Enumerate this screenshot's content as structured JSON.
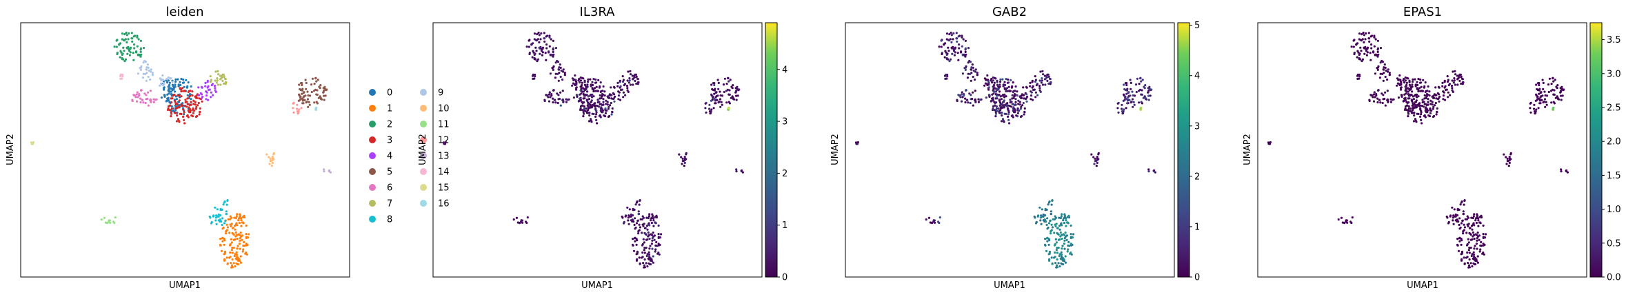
{
  "chart_data": [
    {
      "type": "scatter",
      "title": "leiden",
      "xlabel": "UMAP1",
      "ylabel": "UMAP2",
      "legend_position": "right",
      "series": [
        {
          "name": "0",
          "color": "#1f77b4",
          "clusters": [
            {
              "x": 0.485,
              "y": 0.712,
              "rx": 0.04,
              "ry": 0.075
            },
            {
              "x": 0.45,
              "y": 0.73,
              "rx": 0.025,
              "ry": 0.05
            }
          ]
        },
        {
          "name": "1",
          "color": "#ff7f0e",
          "clusters": [
            {
              "x": 0.65,
              "y": 0.14,
              "rx": 0.045,
              "ry": 0.105
            },
            {
              "x": 0.67,
              "y": 0.24,
              "rx": 0.015,
              "ry": 0.03
            }
          ]
        },
        {
          "name": "2",
          "color": "#279e68",
          "clusters": [
            {
              "x": 0.33,
              "y": 0.905,
              "rx": 0.045,
              "ry": 0.06
            }
          ]
        },
        {
          "name": "3",
          "color": "#d62728",
          "clusters": [
            {
              "x": 0.5,
              "y": 0.675,
              "rx": 0.055,
              "ry": 0.075
            }
          ]
        },
        {
          "name": "4",
          "color": "#aa40fc",
          "clusters": [
            {
              "x": 0.565,
              "y": 0.735,
              "rx": 0.03,
              "ry": 0.04
            }
          ]
        },
        {
          "name": "5",
          "color": "#8c564b",
          "clusters": [
            {
              "x": 0.885,
              "y": 0.725,
              "rx": 0.048,
              "ry": 0.06
            }
          ]
        },
        {
          "name": "6",
          "color": "#e377c2",
          "clusters": [
            {
              "x": 0.375,
              "y": 0.705,
              "rx": 0.04,
              "ry": 0.035
            }
          ]
        },
        {
          "name": "7",
          "color": "#b5bd61",
          "clusters": [
            {
              "x": 0.6,
              "y": 0.775,
              "rx": 0.03,
              "ry": 0.035
            }
          ]
        },
        {
          "name": "8",
          "color": "#17becf",
          "clusters": [
            {
              "x": 0.6,
              "y": 0.24,
              "rx": 0.03,
              "ry": 0.04
            },
            {
              "x": 0.62,
              "y": 0.295,
              "rx": 0.01,
              "ry": 0.02
            }
          ]
        },
        {
          "name": "9",
          "color": "#aec7e8",
          "clusters": [
            {
              "x": 0.38,
              "y": 0.81,
              "rx": 0.025,
              "ry": 0.04
            },
            {
              "x": 0.44,
              "y": 0.77,
              "rx": 0.025,
              "ry": 0.025
            }
          ]
        },
        {
          "name": "10",
          "color": "#ffbb78",
          "clusters": [
            {
              "x": 0.76,
              "y": 0.465,
              "rx": 0.015,
              "ry": 0.035
            }
          ]
        },
        {
          "name": "11",
          "color": "#98df8a",
          "clusters": [
            {
              "x": 0.27,
              "y": 0.225,
              "rx": 0.032,
              "ry": 0.015
            }
          ]
        },
        {
          "name": "12",
          "color": "#ff9896",
          "clusters": [
            {
              "x": 0.84,
              "y": 0.665,
              "rx": 0.018,
              "ry": 0.025
            }
          ]
        },
        {
          "name": "13",
          "color": "#c5b0d5",
          "clusters": [
            {
              "x": 0.93,
              "y": 0.415,
              "rx": 0.015,
              "ry": 0.012
            }
          ]
        },
        {
          "name": "14",
          "color": "#f7b6d2",
          "clusters": [
            {
              "x": 0.305,
              "y": 0.79,
              "rx": 0.008,
              "ry": 0.012
            }
          ]
        },
        {
          "name": "15",
          "color": "#dbdb8d",
          "clusters": [
            {
              "x": 0.035,
              "y": 0.53,
              "rx": 0.004,
              "ry": 0.008
            }
          ]
        },
        {
          "name": "16",
          "color": "#9edae5",
          "clusters": [
            {
              "x": 0.9,
              "y": 0.66,
              "rx": 0.004,
              "ry": 0.006
            }
          ]
        }
      ]
    },
    {
      "type": "scatter",
      "title": "IL3RA",
      "xlabel": "UMAP1",
      "ylabel": "UMAP2",
      "colormap": "viridis",
      "vmin": 0,
      "vmax": 4.9,
      "colorbar_ticks": [
        "0",
        "1",
        "2",
        "3",
        "4"
      ],
      "colorbar_values": [
        0,
        1,
        2,
        3,
        4
      ]
    },
    {
      "type": "scatter",
      "title": "GAB2",
      "xlabel": "UMAP1",
      "ylabel": "UMAP2",
      "colormap": "viridis",
      "vmin": 0,
      "vmax": 5.05,
      "colorbar_ticks": [
        "0",
        "1",
        "2",
        "3",
        "4",
        "5"
      ],
      "colorbar_values": [
        0,
        1,
        2,
        3,
        4,
        5
      ]
    },
    {
      "type": "scatter",
      "title": "EPAS1",
      "xlabel": "UMAP1",
      "ylabel": "UMAP2",
      "colormap": "viridis",
      "vmin": 0,
      "vmax": 3.75,
      "colorbar_ticks": [
        "0.0",
        "0.5",
        "1.0",
        "1.5",
        "2.0",
        "2.5",
        "3.0",
        "3.5"
      ],
      "colorbar_values": [
        0,
        0.5,
        1,
        1.5,
        2,
        2.5,
        3,
        3.5
      ]
    }
  ]
}
